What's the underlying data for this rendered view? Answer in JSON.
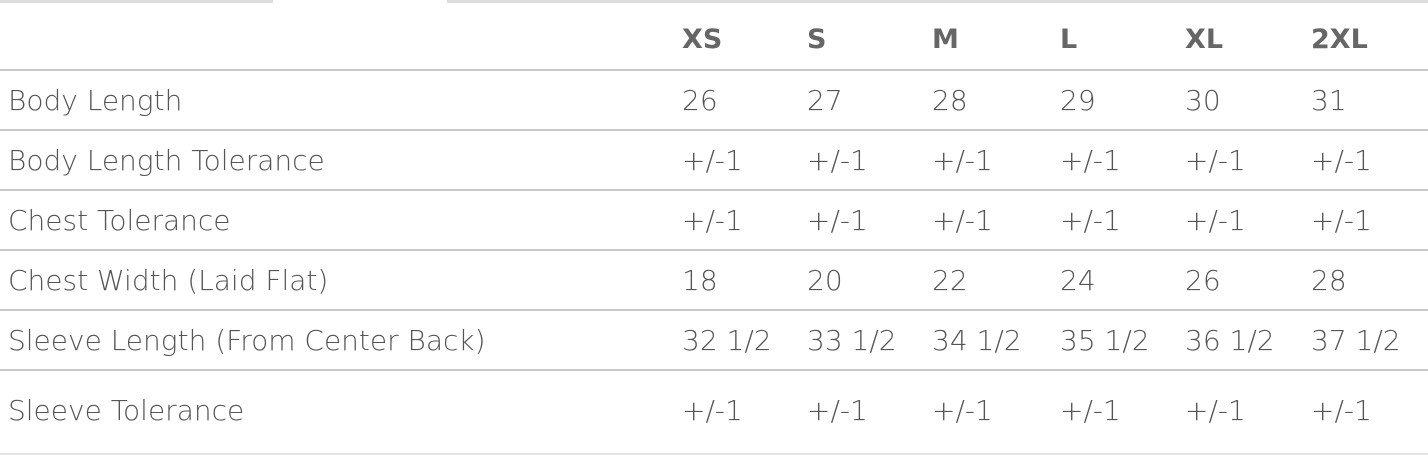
{
  "sizes": [
    "XS",
    "S",
    "M",
    "L",
    "XL",
    "2XL"
  ],
  "rows": [
    {
      "label": "Body Length",
      "values": [
        "26",
        "27",
        "28",
        "29",
        "30",
        "31"
      ]
    },
    {
      "label": "Body Length Tolerance",
      "values": [
        "+/-1",
        "+/-1",
        "+/-1",
        "+/-1",
        "+/-1",
        "+/-1"
      ]
    },
    {
      "label": "Chest Tolerance",
      "values": [
        "+/-1",
        "+/-1",
        "+/-1",
        "+/-1",
        "+/-1",
        "+/-1"
      ]
    },
    {
      "label": "Chest Width (Laid Flat)",
      "values": [
        "18",
        "20",
        "22",
        "24",
        "26",
        "28"
      ]
    },
    {
      "label": "Sleeve Length (From Center Back)",
      "values": [
        "32 1/2",
        "33 1/2",
        "34 1/2",
        "35 1/2",
        "36 1/2",
        "37 1/2"
      ]
    },
    {
      "label": "Sleeve Tolerance",
      "values": [
        "+/-1",
        "+/-1",
        "+/-1",
        "+/-1",
        "+/-1",
        "+/-1"
      ]
    }
  ]
}
